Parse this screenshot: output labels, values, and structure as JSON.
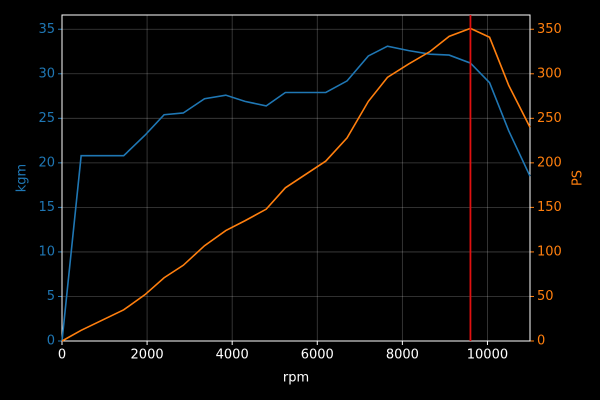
{
  "chart_data": {
    "type": "line",
    "x_label": "rpm",
    "y_label": "kgm",
    "y2_label": "PS",
    "x": [
      0,
      450,
      1450,
      1950,
      2400,
      2850,
      3350,
      3850,
      4300,
      4800,
      5250,
      6200,
      6700,
      7200,
      7650,
      8150,
      8650,
      9100,
      9600,
      10050,
      10500,
      11000
    ],
    "series": [
      {
        "name": "kgm",
        "color": "#1f77b4",
        "axis": "y",
        "values": [
          0,
          20.8,
          20.8,
          23.1,
          25.4,
          25.6,
          27.2,
          27.6,
          26.9,
          26.4,
          27.9,
          27.9,
          29.2,
          32.0,
          33.1,
          32.6,
          32.2,
          32.1,
          31.2,
          29.0,
          23.6,
          18.5
        ]
      },
      {
        "name": "PS",
        "color": "#ff7f0e",
        "axis": "y2",
        "values": [
          0,
          12,
          35,
          52,
          71,
          85,
          107,
          124,
          135,
          148,
          172,
          202,
          228,
          269,
          296,
          311,
          325,
          342,
          351,
          341,
          287,
          240
        ]
      }
    ],
    "marker_x": 9600,
    "marker_color": "#e01010",
    "xlim": [
      0,
      11000
    ],
    "xticks": [
      0,
      2000,
      4000,
      6000,
      8000,
      10000
    ],
    "ylim": [
      0,
      36.6
    ],
    "yticks": [
      0,
      5,
      10,
      15,
      20,
      25,
      30,
      35
    ],
    "y2lim": [
      0,
      366
    ],
    "y2ticks": [
      0,
      50,
      100,
      150,
      200,
      250,
      300,
      350
    ],
    "grid": true
  }
}
